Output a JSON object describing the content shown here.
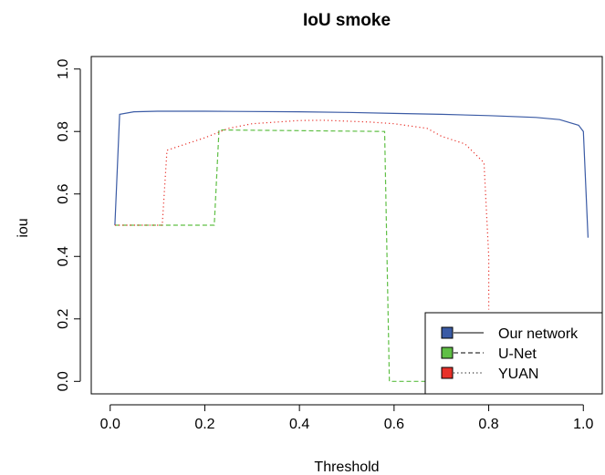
{
  "chart_data": {
    "type": "line",
    "title": "IoU smoke",
    "xlabel": "Threshold",
    "ylabel": "iou",
    "xlim": [
      -0.04,
      1.04
    ],
    "ylim": [
      -0.04,
      1.04
    ],
    "xticks": [
      0.0,
      0.2,
      0.4,
      0.6,
      0.8,
      1.0
    ],
    "yticks": [
      0.0,
      0.2,
      0.4,
      0.6,
      0.8,
      1.0
    ],
    "xtick_labels": [
      "0.0",
      "0.2",
      "0.4",
      "0.6",
      "0.8",
      "1.0"
    ],
    "ytick_labels": [
      "0.0",
      "0.2",
      "0.4",
      "0.6",
      "0.8",
      "1.0"
    ],
    "grid": false,
    "legend_position": "bottom-right",
    "series": [
      {
        "name": "Our network",
        "color": "#3b5ba5",
        "style": "solid",
        "x": [
          0.01,
          0.02,
          0.05,
          0.1,
          0.2,
          0.3,
          0.4,
          0.5,
          0.6,
          0.7,
          0.8,
          0.9,
          0.95,
          0.99,
          1.0,
          1.01
        ],
        "y": [
          0.5,
          0.855,
          0.863,
          0.865,
          0.865,
          0.864,
          0.863,
          0.861,
          0.858,
          0.855,
          0.851,
          0.845,
          0.838,
          0.82,
          0.8,
          0.46
        ]
      },
      {
        "name": "U-Net",
        "color": "#5fbf45",
        "style": "dashed",
        "x": [
          0.01,
          0.22,
          0.23,
          0.58,
          0.59,
          0.8
        ],
        "y": [
          0.5,
          0.5,
          0.805,
          0.8,
          0.0,
          0.0
        ]
      },
      {
        "name": "YUAN",
        "color": "#e8312a",
        "style": "dotted",
        "x": [
          0.01,
          0.11,
          0.12,
          0.2,
          0.25,
          0.3,
          0.4,
          0.45,
          0.5,
          0.55,
          0.6,
          0.67,
          0.7,
          0.75,
          0.79,
          0.8,
          0.8
        ],
        "y": [
          0.5,
          0.5,
          0.74,
          0.78,
          0.81,
          0.825,
          0.835,
          0.836,
          0.833,
          0.83,
          0.825,
          0.81,
          0.785,
          0.76,
          0.7,
          0.4,
          0.23
        ]
      }
    ]
  }
}
